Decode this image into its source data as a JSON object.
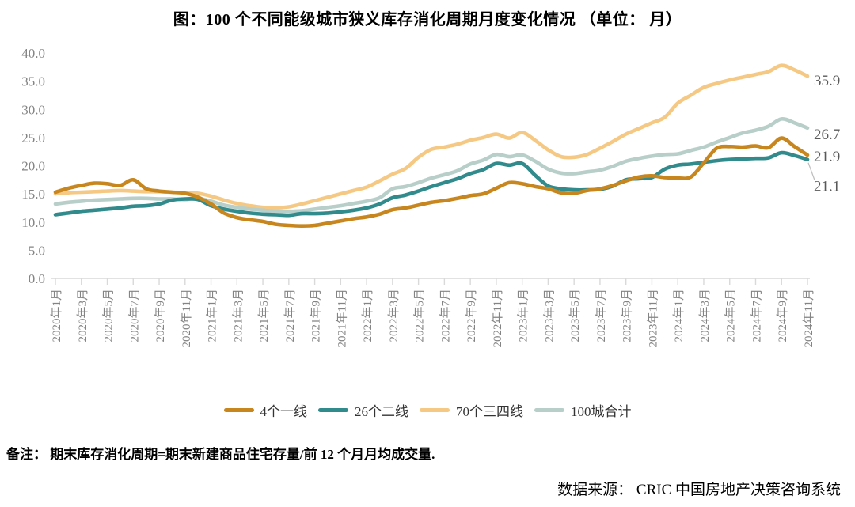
{
  "title": "图：100 个不同能级城市狭义库存消化周期月度变化情况 （单位： 月）",
  "note": "备注： 期末库存消化周期=期末新建商品住宅存量/前 12 个月月均成交量.",
  "source": "数据来源： CRIC 中国房地产决策咨询系统",
  "chart_data": {
    "type": "line",
    "title": "图：100 个不同能级城市狭义库存消化周期月度变化情况 （单位： 月）",
    "unit": "月",
    "ylim": [
      0,
      40
    ],
    "grid": false,
    "legend_position": "bottom",
    "axis_color": "#d9d9d9",
    "tick_label_color": "#848484",
    "end_label_color": "#595959",
    "y_tick_labels": [
      "0.0",
      "5.0",
      "10.0",
      "15.0",
      "20.0",
      "25.0",
      "30.0",
      "35.0",
      "40.0"
    ],
    "x_tick_labels": [
      "2020年1月",
      "2020年3月",
      "2020年5月",
      "2020年7月",
      "2020年9月",
      "2020年11月",
      "2021年1月",
      "2021年3月",
      "2021年5月",
      "2021年7月",
      "2021年9月",
      "2021年11月",
      "2022年1月",
      "2022年3月",
      "2022年5月",
      "2022年7月",
      "2022年9月",
      "2022年11月",
      "2023年1月",
      "2023年3月",
      "2023年5月",
      "2023年7月",
      "2023年9月",
      "2023年11月",
      "2024年1月",
      "2024年3月",
      "2024年5月",
      "2024年7月",
      "2024年9月",
      "2024年11月"
    ],
    "x_months_span": "2020年1月 - 2024年11月 (monthly, 59 points)",
    "n_points": 59,
    "series": [
      {
        "name": "4个一线",
        "color": "#C8861F",
        "end_label": "21.9",
        "values": [
          15.3,
          16.0,
          16.5,
          16.9,
          16.8,
          16.5,
          17.5,
          15.9,
          15.5,
          15.3,
          15.1,
          14.4,
          13.2,
          11.6,
          10.8,
          10.4,
          10.1,
          9.6,
          9.4,
          9.3,
          9.4,
          9.8,
          10.2,
          10.6,
          10.9,
          11.4,
          12.2,
          12.5,
          13.0,
          13.5,
          13.8,
          14.2,
          14.7,
          15.0,
          16.0,
          17.0,
          16.8,
          16.3,
          15.9,
          15.2,
          15.1,
          15.6,
          15.9,
          16.5,
          17.3,
          18.0,
          18.2,
          17.9,
          17.8,
          18.0,
          20.5,
          23.1,
          23.4,
          23.3,
          23.5,
          23.2,
          24.9,
          23.4,
          21.9
        ]
      },
      {
        "name": "26个二线",
        "color": "#318A8C",
        "end_label": "21.1",
        "values": [
          11.3,
          11.6,
          11.9,
          12.1,
          12.3,
          12.5,
          12.8,
          12.9,
          13.2,
          13.9,
          14.1,
          14.0,
          12.9,
          12.3,
          11.9,
          11.6,
          11.4,
          11.3,
          11.2,
          11.5,
          11.5,
          11.6,
          11.8,
          12.1,
          12.5,
          13.2,
          14.3,
          14.8,
          15.5,
          16.3,
          17.0,
          17.7,
          18.6,
          19.3,
          20.4,
          20.1,
          20.4,
          18.3,
          16.4,
          15.9,
          15.7,
          15.7,
          15.8,
          16.4,
          17.5,
          17.7,
          17.9,
          19.4,
          20.1,
          20.3,
          20.6,
          20.9,
          21.1,
          21.2,
          21.3,
          21.4,
          22.3,
          21.8,
          21.1
        ]
      },
      {
        "name": "70个三四线",
        "color": "#F5C983",
        "end_label": "35.9",
        "values": [
          15.0,
          15.2,
          15.3,
          15.4,
          15.5,
          15.6,
          15.5,
          15.4,
          15.4,
          15.3,
          15.2,
          15.1,
          14.6,
          13.9,
          13.3,
          12.9,
          12.6,
          12.5,
          12.7,
          13.2,
          13.8,
          14.4,
          15.0,
          15.6,
          16.2,
          17.3,
          18.5,
          19.5,
          21.5,
          22.9,
          23.3,
          23.8,
          24.5,
          25.0,
          25.6,
          24.9,
          25.9,
          24.5,
          22.8,
          21.6,
          21.5,
          22.0,
          23.1,
          24.3,
          25.6,
          26.6,
          27.6,
          28.6,
          31.1,
          32.5,
          33.9,
          34.6,
          35.2,
          35.7,
          36.2,
          36.7,
          37.8,
          37.0,
          35.9
        ]
      },
      {
        "name": "100城合计",
        "color": "#B7CEC9",
        "end_label": "26.7",
        "values": [
          13.2,
          13.5,
          13.7,
          13.9,
          14.0,
          14.1,
          14.2,
          14.2,
          14.1,
          14.1,
          14.0,
          14.2,
          13.7,
          13.0,
          12.6,
          12.3,
          12.1,
          11.9,
          11.9,
          12.0,
          12.3,
          12.6,
          12.9,
          13.3,
          13.7,
          14.3,
          15.9,
          16.3,
          17.0,
          17.8,
          18.4,
          19.1,
          20.3,
          21.0,
          22.0,
          21.6,
          21.9,
          20.8,
          19.4,
          18.7,
          18.6,
          18.9,
          19.2,
          19.9,
          20.8,
          21.3,
          21.7,
          22.0,
          22.1,
          22.7,
          23.3,
          24.2,
          25.0,
          25.8,
          26.3,
          27.0,
          28.3,
          27.6,
          26.7
        ]
      }
    ]
  }
}
